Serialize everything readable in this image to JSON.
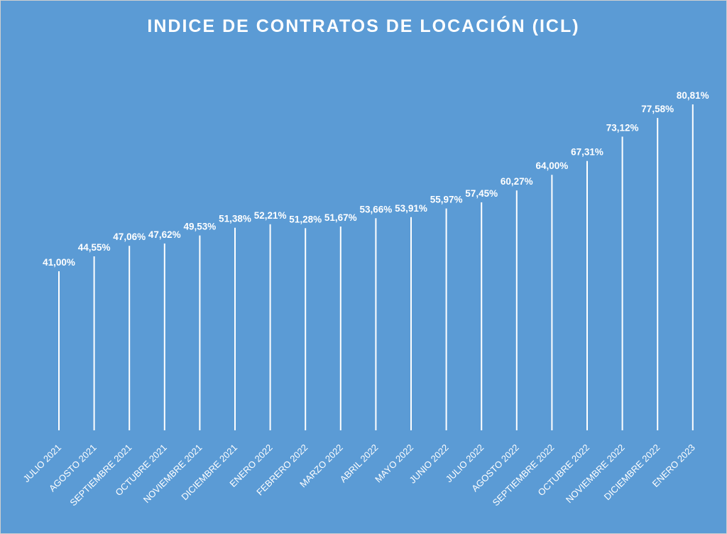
{
  "chart_data": {
    "type": "bar",
    "title": "INDICE DE CONTRATOS DE LOCACIÓN (ICL)",
    "categories": [
      "JULIO 2021",
      "AGOSTO 2021",
      "SEPTIEMBRE 2021",
      "OCTUBRE 2021",
      "NOVIEMBRE 2021",
      "DICIEMBRE 2021",
      "ENERO 2022",
      "FEBRERO 2022",
      "MARZO 2022",
      "ABRIL 2022",
      "MAYO 2022",
      "JUNIO 2022",
      "JULIO 2022",
      "AGOSTO 2022",
      "SEPTIEMBRE 2022",
      "OCTUBRE 2022",
      "NOVIEMBRE 2022",
      "DICIEMBRE 2022",
      "ENERO 2023"
    ],
    "values": [
      41.0,
      44.55,
      47.06,
      47.62,
      49.53,
      51.38,
      52.21,
      51.28,
      51.67,
      53.66,
      53.91,
      55.97,
      57.45,
      60.27,
      64.0,
      67.31,
      73.12,
      77.58,
      80.81
    ],
    "value_labels": [
      "41,00%",
      "44,55%",
      "47,06%",
      "47,62%",
      "49,53%",
      "51,38%",
      "52,21%",
      "51,28%",
      "51,67%",
      "53,66%",
      "53,91%",
      "55,97%",
      "57,45%",
      "60,27%",
      "64,00%",
      "67,31%",
      "73,12%",
      "77,58%",
      "80,81%"
    ],
    "ylim": [
      0,
      90
    ],
    "xlabel": "",
    "ylabel": "",
    "grid": false,
    "legend": "none",
    "bar_color": "#ffffff",
    "background_color": "#5b9bd5"
  }
}
